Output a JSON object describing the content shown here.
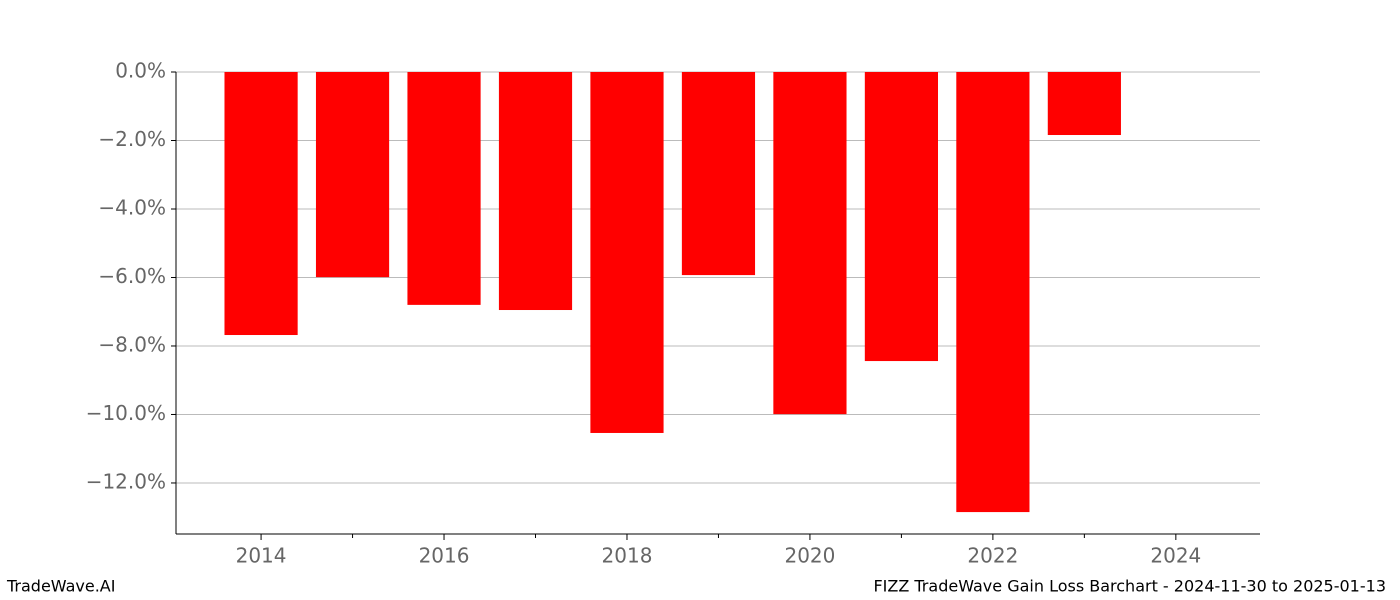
{
  "chart_data": {
    "type": "bar",
    "x": [
      2014,
      2015,
      2016,
      2017,
      2018,
      2019,
      2020,
      2021,
      2022,
      2023
    ],
    "values": [
      -7.68,
      -5.99,
      -6.8,
      -6.95,
      -10.54,
      -5.93,
      -9.99,
      -8.44,
      -12.85,
      -1.84
    ],
    "color": "#ff0000",
    "xlim": [
      2013.07,
      2024.92
    ],
    "xticks": [
      2014,
      2016,
      2018,
      2020,
      2022,
      2024
    ],
    "xminorticks": [
      2015,
      2017,
      2019,
      2021,
      2023
    ],
    "ylim": [
      -13.49,
      0
    ],
    "yticks": [
      {
        "value": 0,
        "label": "0.0%"
      },
      {
        "value": -2,
        "label": "−2.0%"
      },
      {
        "value": -4,
        "label": "−4.0%"
      },
      {
        "value": -6,
        "label": "−6.0%"
      },
      {
        "value": -8,
        "label": "−8.0%"
      },
      {
        "value": -10,
        "label": "−10.0%"
      },
      {
        "value": -12,
        "label": "−12.0%"
      }
    ],
    "grid": true,
    "footer_left": "TradeWave.AI",
    "footer_right": "FIZZ TradeWave Gain Loss Barchart - 2024-11-30 to 2025-01-13"
  }
}
